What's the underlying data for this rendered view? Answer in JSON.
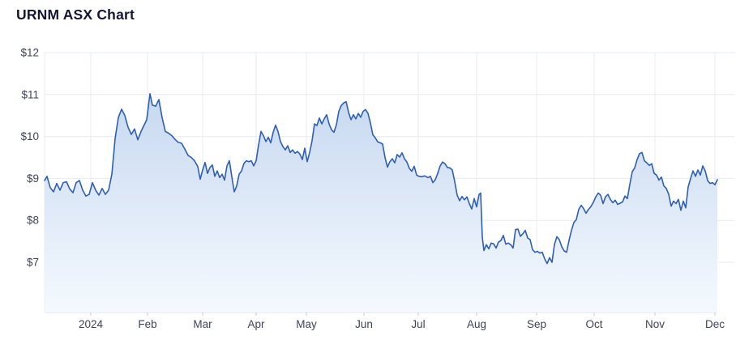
{
  "page": {
    "title": "URNM ASX Chart"
  },
  "chart_data": {
    "type": "area",
    "title": "URNM ASX Chart",
    "symbol": "URNM",
    "exchange": "ASX",
    "currency_prefix": "$",
    "legend": false,
    "grid": true,
    "ylim": [
      5.8,
      12
    ],
    "yticks": [
      12,
      11,
      10,
      9,
      8,
      7
    ],
    "ytick_labels": [
      "$12",
      "$11",
      "$10",
      "$9",
      "$8",
      "$7"
    ],
    "x_ticks": [
      {
        "label": "2024",
        "t": 0.0687
      },
      {
        "label": "Feb",
        "t": 0.153
      },
      {
        "label": "Mar",
        "t": 0.2349
      },
      {
        "label": "Apr",
        "t": 0.3145
      },
      {
        "label": "May",
        "t": 0.3892
      },
      {
        "label": "Jun",
        "t": 0.4747
      },
      {
        "label": "Jul",
        "t": 0.5554
      },
      {
        "label": "Aug",
        "t": 0.6422
      },
      {
        "label": "Sep",
        "t": 0.7313
      },
      {
        "label": "Oct",
        "t": 0.8169
      },
      {
        "label": "Nov",
        "t": 0.9072
      },
      {
        "label": "Dec",
        "t": 0.9964
      }
    ],
    "colors": {
      "line": "#2e5eb6",
      "fill_top": "#bcd2ee",
      "fill_mid": "#dde8f7",
      "fill_bottom": "#f4f9fe",
      "grid": "#e9ebf1",
      "axis": "#d7dae1",
      "tick": "#c6c9d2",
      "label": "#3e4358",
      "title": "#121735"
    },
    "points": [
      [
        0.0,
        8.95
      ],
      [
        0.0036,
        9.05
      ],
      [
        0.0084,
        8.78
      ],
      [
        0.0133,
        8.68
      ],
      [
        0.0181,
        8.88
      ],
      [
        0.0229,
        8.72
      ],
      [
        0.0277,
        8.9
      ],
      [
        0.0325,
        8.92
      ],
      [
        0.0373,
        8.75
      ],
      [
        0.0422,
        8.66
      ],
      [
        0.047,
        8.9
      ],
      [
        0.0518,
        8.95
      ],
      [
        0.0566,
        8.72
      ],
      [
        0.0614,
        8.58
      ],
      [
        0.0663,
        8.62
      ],
      [
        0.0711,
        8.9
      ],
      [
        0.0759,
        8.72
      ],
      [
        0.0807,
        8.6
      ],
      [
        0.0855,
        8.76
      ],
      [
        0.0904,
        8.62
      ],
      [
        0.0952,
        8.72
      ],
      [
        0.1,
        9.1
      ],
      [
        0.1048,
        9.95
      ],
      [
        0.1096,
        10.45
      ],
      [
        0.1145,
        10.65
      ],
      [
        0.1193,
        10.5
      ],
      [
        0.1241,
        10.22
      ],
      [
        0.1289,
        10.05
      ],
      [
        0.1337,
        10.18
      ],
      [
        0.1386,
        9.92
      ],
      [
        0.1434,
        10.12
      ],
      [
        0.1482,
        10.28
      ],
      [
        0.1518,
        10.4
      ],
      [
        0.1566,
        11.02
      ],
      [
        0.1602,
        10.75
      ],
      [
        0.1651,
        10.72
      ],
      [
        0.1699,
        10.88
      ],
      [
        0.1747,
        10.45
      ],
      [
        0.1795,
        10.12
      ],
      [
        0.1843,
        10.08
      ],
      [
        0.1892,
        10.02
      ],
      [
        0.194,
        9.93
      ],
      [
        0.1988,
        9.86
      ],
      [
        0.2036,
        9.84
      ],
      [
        0.2084,
        9.7
      ],
      [
        0.2133,
        9.55
      ],
      [
        0.2181,
        9.5
      ],
      [
        0.2229,
        9.42
      ],
      [
        0.2277,
        9.28
      ],
      [
        0.2313,
        8.98
      ],
      [
        0.2349,
        9.2
      ],
      [
        0.2386,
        9.38
      ],
      [
        0.2422,
        9.12
      ],
      [
        0.2458,
        9.26
      ],
      [
        0.2494,
        9.32
      ],
      [
        0.253,
        9.05
      ],
      [
        0.2566,
        9.18
      ],
      [
        0.2602,
        9.02
      ],
      [
        0.2639,
        9.1
      ],
      [
        0.2675,
        8.96
      ],
      [
        0.2711,
        9.3
      ],
      [
        0.2747,
        9.42
      ],
      [
        0.2783,
        9.04
      ],
      [
        0.2819,
        8.68
      ],
      [
        0.2855,
        8.82
      ],
      [
        0.2892,
        9.1
      ],
      [
        0.2928,
        9.18
      ],
      [
        0.2964,
        9.36
      ],
      [
        0.3,
        9.42
      ],
      [
        0.3036,
        9.4
      ],
      [
        0.3072,
        9.42
      ],
      [
        0.3108,
        9.3
      ],
      [
        0.3145,
        9.42
      ],
      [
        0.3181,
        9.8
      ],
      [
        0.3217,
        10.12
      ],
      [
        0.3253,
        10.02
      ],
      [
        0.3289,
        9.88
      ],
      [
        0.3325,
        9.98
      ],
      [
        0.3361,
        9.85
      ],
      [
        0.3398,
        10.1
      ],
      [
        0.3434,
        10.27
      ],
      [
        0.347,
        10.12
      ],
      [
        0.3506,
        9.88
      ],
      [
        0.3542,
        9.76
      ],
      [
        0.3578,
        9.68
      ],
      [
        0.3614,
        9.78
      ],
      [
        0.3651,
        9.62
      ],
      [
        0.3687,
        9.68
      ],
      [
        0.3723,
        9.6
      ],
      [
        0.3759,
        9.64
      ],
      [
        0.3795,
        9.58
      ],
      [
        0.3831,
        9.45
      ],
      [
        0.3867,
        9.72
      ],
      [
        0.3904,
        9.4
      ],
      [
        0.394,
        9.62
      ],
      [
        0.3976,
        9.9
      ],
      [
        0.4012,
        10.3
      ],
      [
        0.4048,
        10.26
      ],
      [
        0.4084,
        10.44
      ],
      [
        0.412,
        10.3
      ],
      [
        0.4157,
        10.42
      ],
      [
        0.4193,
        10.52
      ],
      [
        0.4229,
        10.3
      ],
      [
        0.4265,
        10.16
      ],
      [
        0.4301,
        10.1
      ],
      [
        0.4337,
        10.28
      ],
      [
        0.4373,
        10.6
      ],
      [
        0.441,
        10.74
      ],
      [
        0.4446,
        10.8
      ],
      [
        0.4482,
        10.83
      ],
      [
        0.4518,
        10.58
      ],
      [
        0.4554,
        10.4
      ],
      [
        0.459,
        10.52
      ],
      [
        0.4627,
        10.42
      ],
      [
        0.4663,
        10.55
      ],
      [
        0.4699,
        10.46
      ],
      [
        0.4735,
        10.6
      ],
      [
        0.4771,
        10.64
      ],
      [
        0.4807,
        10.55
      ],
      [
        0.4843,
        10.32
      ],
      [
        0.488,
        10.04
      ],
      [
        0.4916,
        9.97
      ],
      [
        0.4952,
        9.87
      ],
      [
        0.4988,
        9.85
      ],
      [
        0.5024,
        9.82
      ],
      [
        0.506,
        9.5
      ],
      [
        0.5096,
        9.27
      ],
      [
        0.5133,
        9.4
      ],
      [
        0.5169,
        9.47
      ],
      [
        0.5205,
        9.37
      ],
      [
        0.5241,
        9.57
      ],
      [
        0.5277,
        9.51
      ],
      [
        0.5313,
        9.61
      ],
      [
        0.5349,
        9.47
      ],
      [
        0.5386,
        9.39
      ],
      [
        0.5422,
        9.24
      ],
      [
        0.5458,
        9.17
      ],
      [
        0.5494,
        9.29
      ],
      [
        0.553,
        9.08
      ],
      [
        0.5566,
        9.05
      ],
      [
        0.5602,
        9.04
      ],
      [
        0.5651,
        9.06
      ],
      [
        0.5699,
        9.02
      ],
      [
        0.5735,
        9.05
      ],
      [
        0.5771,
        8.9
      ],
      [
        0.5807,
        8.97
      ],
      [
        0.5843,
        9.12
      ],
      [
        0.588,
        9.3
      ],
      [
        0.5916,
        9.39
      ],
      [
        0.5952,
        9.35
      ],
      [
        0.5988,
        9.26
      ],
      [
        0.6024,
        9.25
      ],
      [
        0.606,
        9.2
      ],
      [
        0.6096,
        8.92
      ],
      [
        0.6133,
        8.6
      ],
      [
        0.6169,
        8.47
      ],
      [
        0.6205,
        8.57
      ],
      [
        0.6241,
        8.49
      ],
      [
        0.6277,
        8.56
      ],
      [
        0.6313,
        8.4
      ],
      [
        0.6349,
        8.27
      ],
      [
        0.6386,
        8.52
      ],
      [
        0.6422,
        8.32
      ],
      [
        0.6458,
        8.62
      ],
      [
        0.6482,
        8.65
      ],
      [
        0.6506,
        7.6
      ],
      [
        0.653,
        7.28
      ],
      [
        0.6566,
        7.42
      ],
      [
        0.6602,
        7.32
      ],
      [
        0.6639,
        7.46
      ],
      [
        0.6675,
        7.44
      ],
      [
        0.6711,
        7.34
      ],
      [
        0.6747,
        7.48
      ],
      [
        0.6783,
        7.52
      ],
      [
        0.6819,
        7.64
      ],
      [
        0.6855,
        7.43
      ],
      [
        0.6892,
        7.46
      ],
      [
        0.6928,
        7.42
      ],
      [
        0.6964,
        7.34
      ],
      [
        0.7,
        7.78
      ],
      [
        0.7036,
        7.79
      ],
      [
        0.7072,
        7.62
      ],
      [
        0.7108,
        7.68
      ],
      [
        0.7145,
        7.76
      ],
      [
        0.7181,
        7.58
      ],
      [
        0.7217,
        7.54
      ],
      [
        0.7253,
        7.3
      ],
      [
        0.7289,
        7.24
      ],
      [
        0.7325,
        7.26
      ],
      [
        0.7361,
        7.22
      ],
      [
        0.7398,
        7.24
      ],
      [
        0.7434,
        7.08
      ],
      [
        0.747,
        6.97
      ],
      [
        0.7506,
        7.11
      ],
      [
        0.7542,
        7.0
      ],
      [
        0.7578,
        7.42
      ],
      [
        0.7614,
        7.61
      ],
      [
        0.7651,
        7.54
      ],
      [
        0.7687,
        7.37
      ],
      [
        0.7723,
        7.27
      ],
      [
        0.7759,
        7.24
      ],
      [
        0.7795,
        7.52
      ],
      [
        0.7831,
        7.76
      ],
      [
        0.7867,
        7.95
      ],
      [
        0.7904,
        8.02
      ],
      [
        0.794,
        8.26
      ],
      [
        0.7976,
        8.36
      ],
      [
        0.8012,
        8.28
      ],
      [
        0.8048,
        8.17
      ],
      [
        0.8084,
        8.26
      ],
      [
        0.812,
        8.33
      ],
      [
        0.8157,
        8.43
      ],
      [
        0.8193,
        8.56
      ],
      [
        0.8229,
        8.65
      ],
      [
        0.8265,
        8.6
      ],
      [
        0.8301,
        8.4
      ],
      [
        0.8337,
        8.56
      ],
      [
        0.8373,
        8.62
      ],
      [
        0.841,
        8.5
      ],
      [
        0.8446,
        8.42
      ],
      [
        0.8482,
        8.48
      ],
      [
        0.8518,
        8.38
      ],
      [
        0.8554,
        8.41
      ],
      [
        0.859,
        8.44
      ],
      [
        0.8627,
        8.58
      ],
      [
        0.8663,
        8.52
      ],
      [
        0.8699,
        8.86
      ],
      [
        0.8735,
        9.16
      ],
      [
        0.8771,
        9.25
      ],
      [
        0.8807,
        9.45
      ],
      [
        0.8843,
        9.59
      ],
      [
        0.888,
        9.62
      ],
      [
        0.8916,
        9.42
      ],
      [
        0.8952,
        9.37
      ],
      [
        0.8988,
        9.31
      ],
      [
        0.9024,
        9.35
      ],
      [
        0.906,
        9.12
      ],
      [
        0.9096,
        9.08
      ],
      [
        0.9133,
        8.96
      ],
      [
        0.9169,
        9.03
      ],
      [
        0.9205,
        8.82
      ],
      [
        0.9241,
        8.76
      ],
      [
        0.9277,
        8.62
      ],
      [
        0.9313,
        8.34
      ],
      [
        0.9349,
        8.46
      ],
      [
        0.9386,
        8.4
      ],
      [
        0.9422,
        8.5
      ],
      [
        0.9458,
        8.24
      ],
      [
        0.9494,
        8.46
      ],
      [
        0.953,
        8.3
      ],
      [
        0.9566,
        8.8
      ],
      [
        0.9602,
        9.0
      ],
      [
        0.9639,
        9.18
      ],
      [
        0.9675,
        9.05
      ],
      [
        0.9711,
        9.2
      ],
      [
        0.9747,
        9.08
      ],
      [
        0.9783,
        9.3
      ],
      [
        0.9819,
        9.18
      ],
      [
        0.9855,
        8.95
      ],
      [
        0.9892,
        8.88
      ],
      [
        0.9928,
        8.9
      ],
      [
        0.9964,
        8.85
      ],
      [
        1.0,
        8.97
      ]
    ]
  }
}
